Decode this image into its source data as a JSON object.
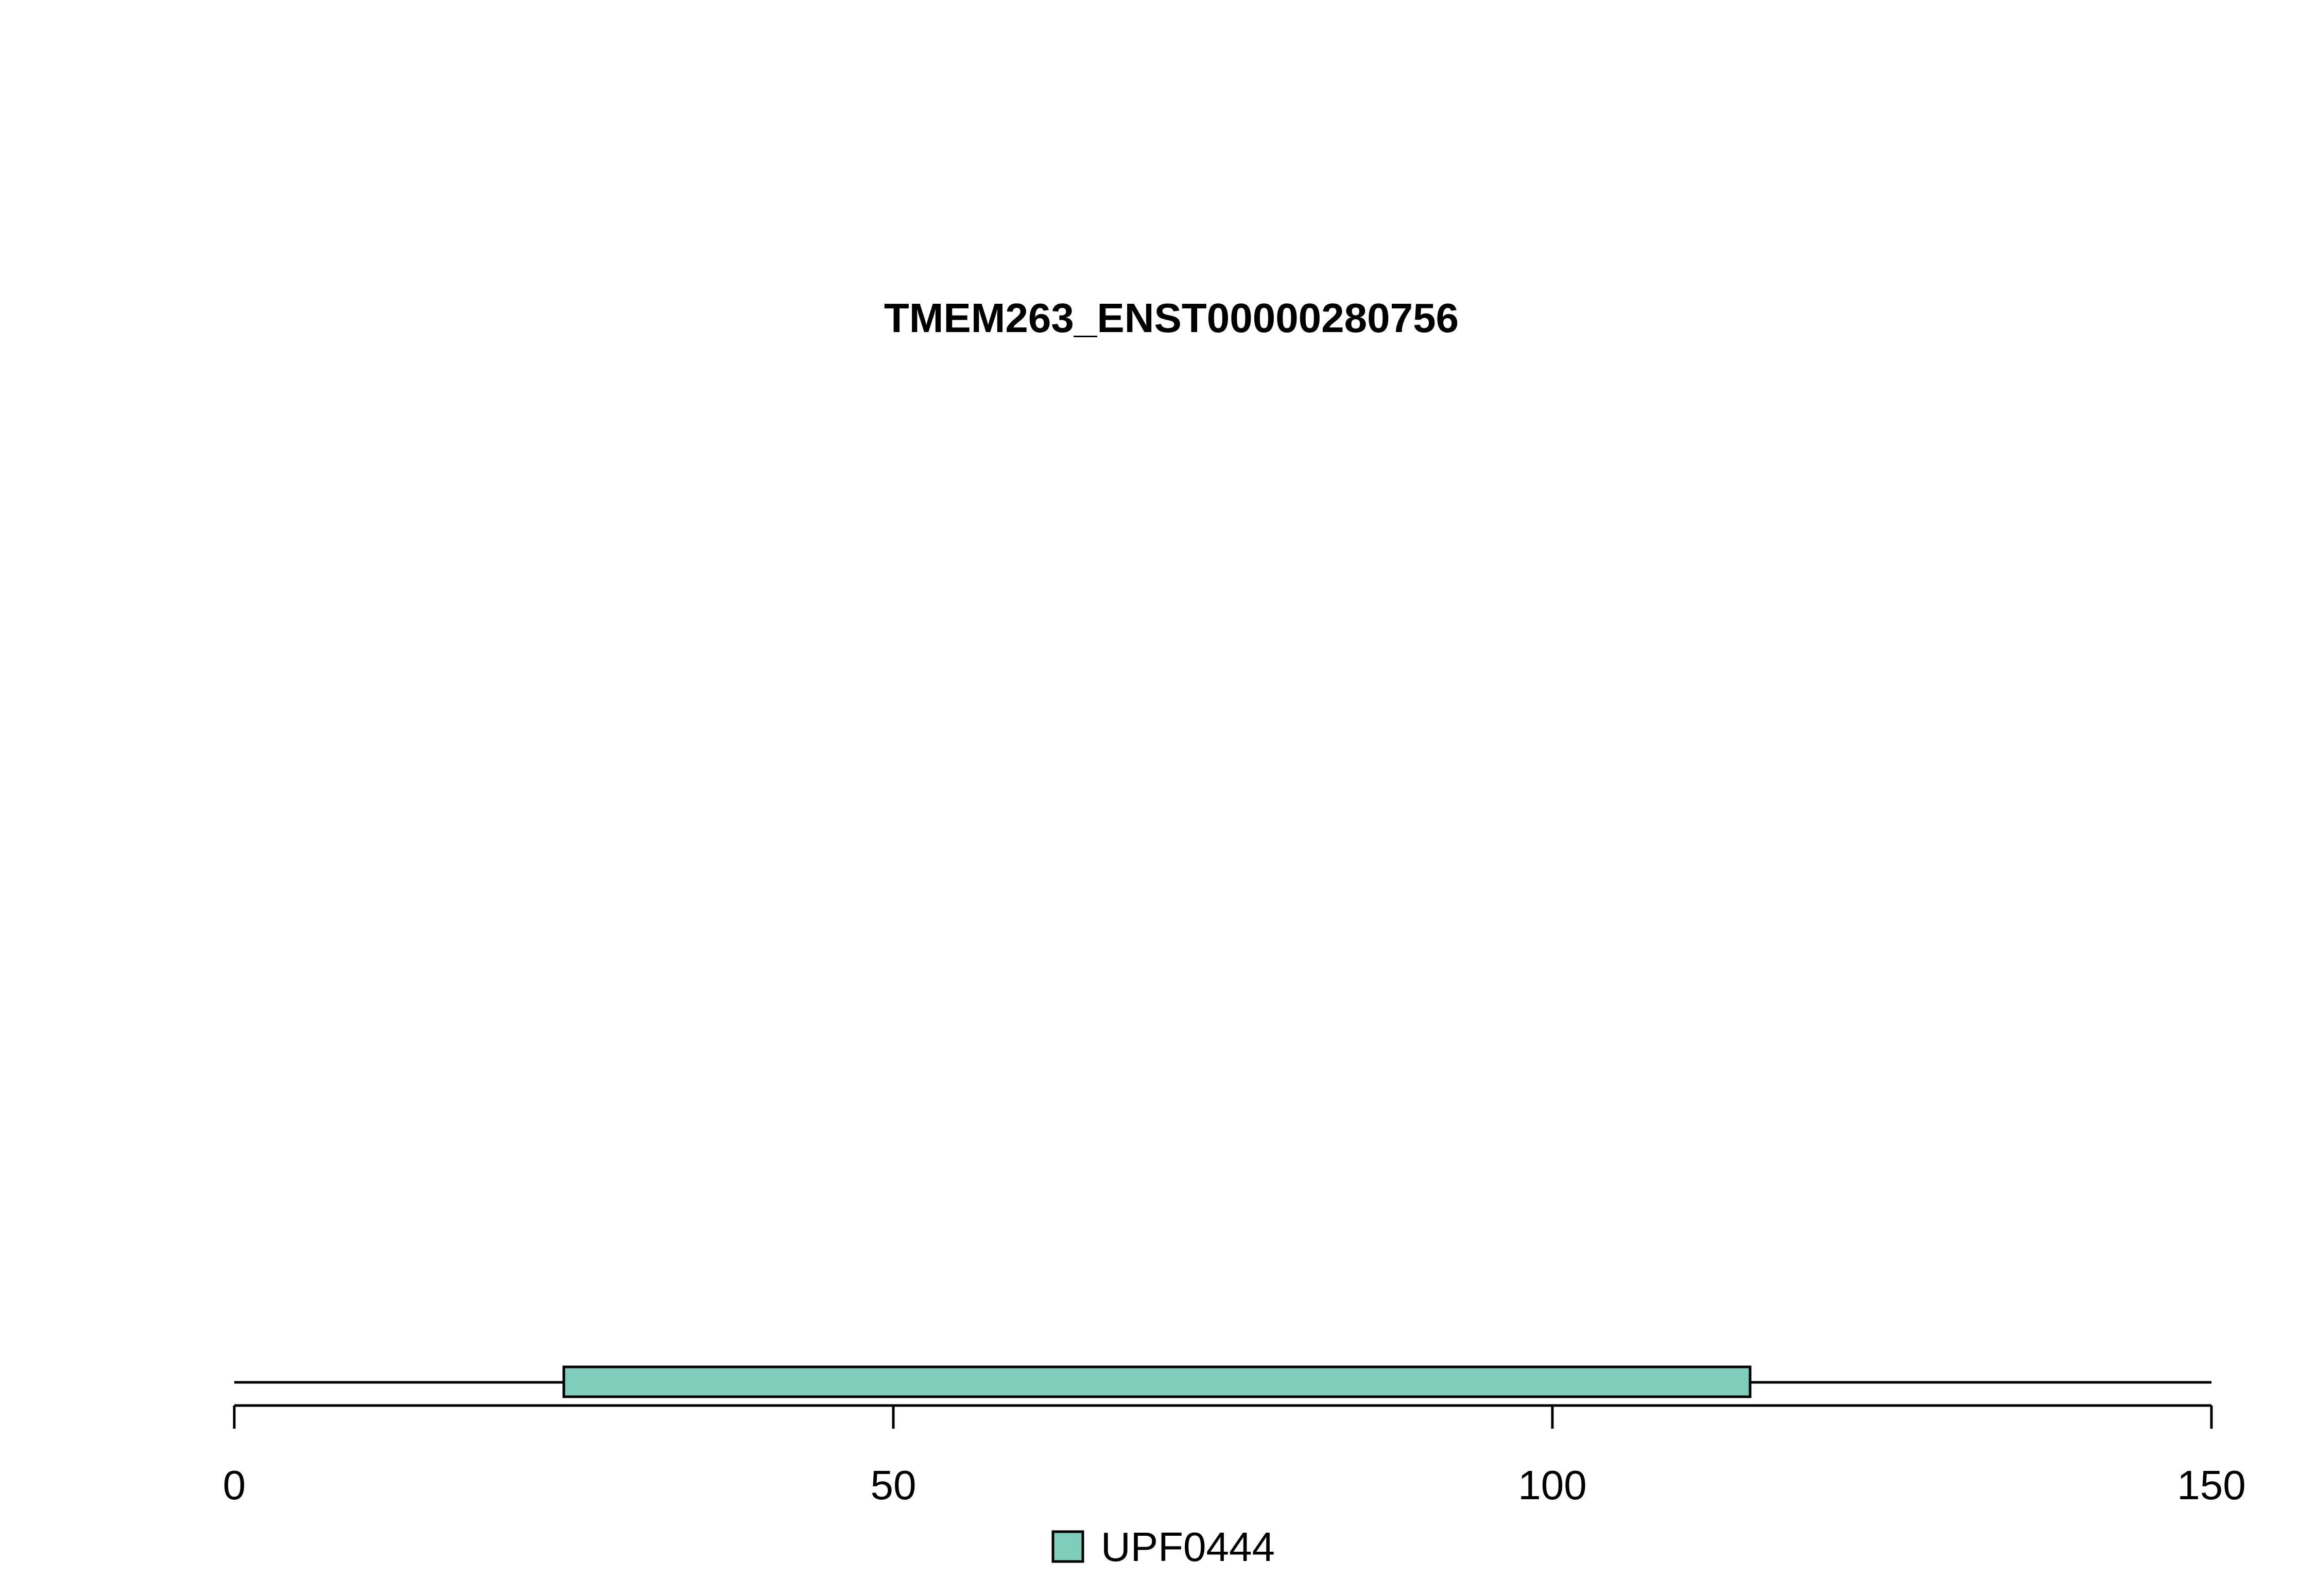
{
  "chart_data": {
    "type": "bar",
    "title": "TMEM263_ENST00000280756",
    "xlabel": "",
    "ylabel": "",
    "xlim": [
      0,
      150
    ],
    "protein_length": 150,
    "ticks": [
      0,
      50,
      100,
      150
    ],
    "tick_labels": [
      "0",
      "50",
      "100",
      "150"
    ],
    "domains": [
      {
        "name": "UPF0444",
        "start": 25,
        "end": 115,
        "color": "#7fcdbb"
      }
    ],
    "legend": {
      "position": "bottom-center",
      "entries": [
        "UPF0444"
      ]
    }
  }
}
